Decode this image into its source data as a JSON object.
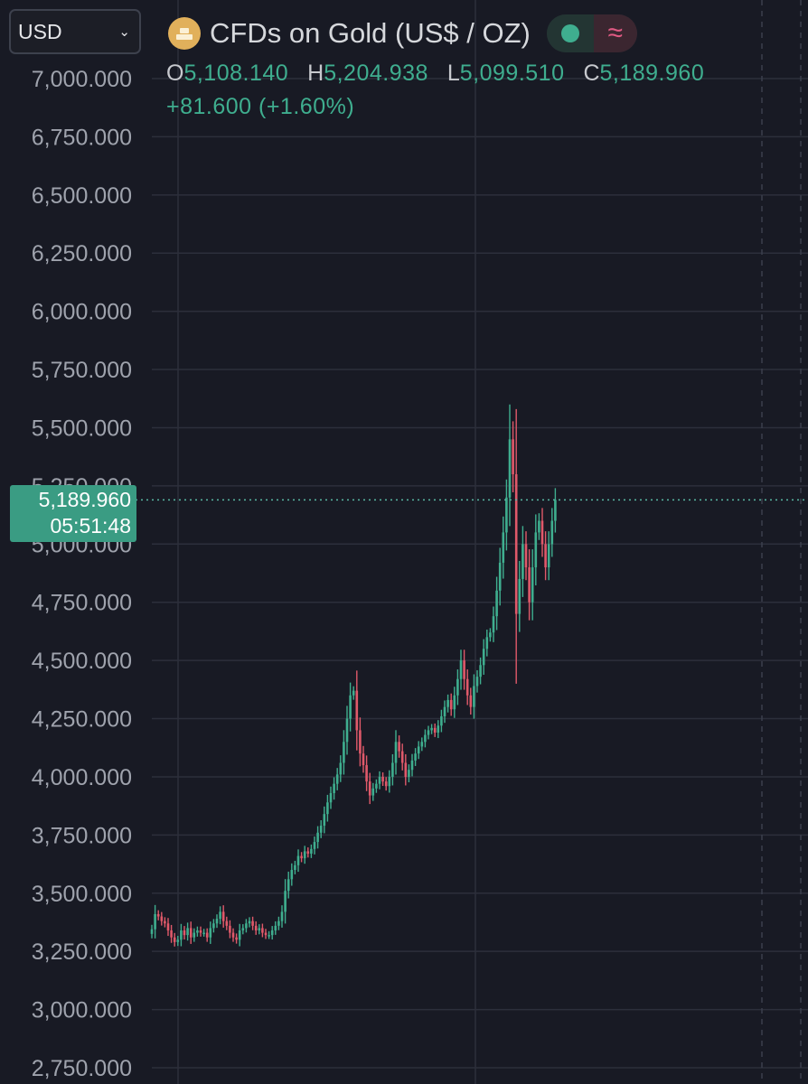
{
  "toolbar": {
    "currency": "USD"
  },
  "header": {
    "title": "CFDs on Gold (US$ / OZ)",
    "ohlc": {
      "o_label": "O",
      "o": "5,108.140",
      "h_label": "H",
      "h": "5,204.938",
      "l_label": "L",
      "l": "5,099.510",
      "c_label": "C",
      "c": "5,189.960"
    },
    "change": "+81.600 (+1.60%)",
    "icons": {
      "logo": "gold-bars-icon",
      "status": "market-open-dot-icon",
      "wave": "approx-wave-icon"
    }
  },
  "price_tag": {
    "price": "5,189.960",
    "countdown": "05:51:48"
  },
  "colors": {
    "up": "#3fae8f",
    "down": "#e0596a",
    "background": "#181a24",
    "grid": "#2c2f3b",
    "accent": "#3a9c83"
  },
  "chart_data": {
    "type": "candlestick",
    "title": "CFDs on Gold (US$ / OZ)",
    "ylim": [
      2750,
      7000
    ],
    "yticks": [
      "7,000.000",
      "6,750.000",
      "6,500.000",
      "6,250.000",
      "6,000.000",
      "5,750.000",
      "5,500.000",
      "5,250.000",
      "5,000.000",
      "4,750.000",
      "4,500.000",
      "4,250.000",
      "4,000.000",
      "3,750.000",
      "3,500.000",
      "3,250.000",
      "3,000.000",
      "2,750.000"
    ],
    "ytick_values": [
      7000,
      6750,
      6500,
      6250,
      6000,
      5750,
      5500,
      5250,
      5000,
      4750,
      4500,
      4250,
      4000,
      3750,
      3500,
      3250,
      3000,
      2750
    ],
    "last_price": 5189.96,
    "closes": [
      3345,
      3410,
      3400,
      3380,
      3370,
      3340,
      3310,
      3290,
      3300,
      3340,
      3320,
      3350,
      3310,
      3330,
      3340,
      3330,
      3330,
      3310,
      3350,
      3370,
      3390,
      3420,
      3380,
      3360,
      3330,
      3310,
      3300,
      3340,
      3350,
      3370,
      3380,
      3360,
      3340,
      3350,
      3330,
      3320,
      3320,
      3340,
      3360,
      3380,
      3420,
      3510,
      3560,
      3600,
      3620,
      3660,
      3650,
      3680,
      3670,
      3690,
      3720,
      3760,
      3790,
      3840,
      3890,
      3930,
      3970,
      4010,
      4060,
      4150,
      4250,
      4350,
      4370,
      4200,
      4100,
      4050,
      3980,
      3920,
      3950,
      3970,
      4000,
      3980,
      3960,
      4000,
      4060,
      4150,
      4110,
      4060,
      4000,
      4030,
      4070,
      4100,
      4130,
      4150,
      4180,
      4200,
      4210,
      4190,
      4220,
      4260,
      4300,
      4330,
      4290,
      4350,
      4420,
      4500,
      4420,
      4350,
      4300,
      4390,
      4430,
      4480,
      4550,
      4600,
      4620,
      4690,
      4800,
      4920,
      5050,
      5200,
      5450,
      5300,
      4700,
      4850,
      5000,
      4900,
      4750,
      4900,
      5050,
      5100,
      5000,
      4900,
      5000,
      5100,
      5189.96
    ]
  }
}
